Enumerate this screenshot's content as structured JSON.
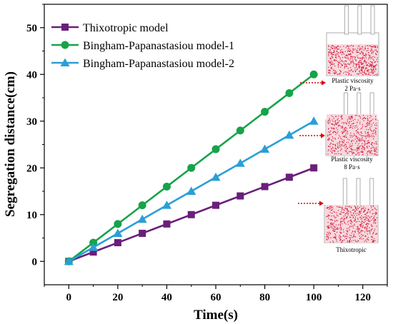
{
  "chart_data": {
    "type": "line",
    "xlabel": "Time(s)",
    "ylabel": "Segregation distance(cm)",
    "xlim": [
      -10,
      130
    ],
    "ylim": [
      -5,
      55
    ],
    "xticks": [
      0,
      20,
      40,
      60,
      80,
      100,
      120
    ],
    "yticks": [
      0,
      10,
      20,
      30,
      40,
      50
    ],
    "x": [
      0,
      10,
      20,
      30,
      40,
      50,
      60,
      70,
      80,
      90,
      100
    ],
    "grid": false,
    "legend_position": "top-left",
    "series": [
      {
        "name": "Thixotropic model",
        "color": "#6a1f7a",
        "marker": "square",
        "values": [
          0,
          2,
          4,
          6,
          8,
          10,
          12,
          14,
          16,
          18,
          20
        ]
      },
      {
        "name": "Bingham-Papanastasiou model-1",
        "color": "#16a34a",
        "marker": "circle",
        "values": [
          0,
          4,
          8,
          12,
          16,
          20,
          24,
          28,
          32,
          36,
          40
        ]
      },
      {
        "name": "Bingham-Papanastasiou model-2",
        "color": "#2a9fd6",
        "marker": "triangle",
        "values": [
          0,
          3,
          6,
          9,
          12,
          15,
          18,
          21,
          24,
          27,
          30
        ]
      }
    ],
    "insets": [
      {
        "caption_lines": [
          "Plastic viscosity",
          "2 Pa·s"
        ]
      },
      {
        "caption_lines": [
          "Plastic viscosity",
          "8 Pa·s"
        ]
      },
      {
        "caption_lines": [
          "Thixotropic"
        ]
      }
    ],
    "inset_particle_color": "#d11a3a",
    "arrow_color": "#e00000"
  }
}
